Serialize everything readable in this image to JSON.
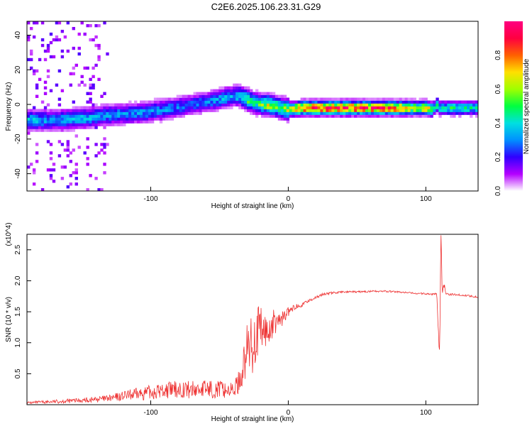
{
  "figure_title": "C2E6.2025.106.23.31.G29",
  "chart_data": [
    {
      "type": "heatmap",
      "title": "C2E6.2025.106.23.31.G29",
      "xlabel": "Height of straight line (km)",
      "ylabel": "Frequency (Hz)",
      "xlim": [
        -190,
        138
      ],
      "ylim": [
        -50,
        48
      ],
      "xticks": [
        -100,
        0,
        100
      ],
      "xtick_labels": [
        "-100",
        "0",
        "100"
      ],
      "yticks": [
        -40,
        -20,
        0,
        20,
        40
      ],
      "ytick_labels": [
        "-40",
        "-20",
        "0",
        "20",
        "40"
      ],
      "colorbar": {
        "label": "Normalized spectral amplitude",
        "range": [
          0,
          1
        ],
        "ticks": [
          0,
          0.2,
          0.4,
          0.6,
          0.8
        ],
        "tick_labels": [
          "0.0",
          "0.2",
          "0.4",
          "0.6",
          "0.8"
        ],
        "colormap": [
          "#ffffff",
          "#b400ff",
          "#3000ff",
          "#0090ff",
          "#00e0e0",
          "#00ff40",
          "#a0ff00",
          "#ffe000",
          "#ff6000",
          "#ff0040",
          "#ff0080"
        ]
      },
      "ridge": {
        "x": [
          -190,
          -170,
          -150,
          -130,
          -110,
          -90,
          -70,
          -55,
          -45,
          -40,
          -35,
          -30,
          -25,
          -20,
          -15,
          -10,
          -5,
          0,
          10,
          30,
          60,
          80,
          95,
          100,
          104,
          106,
          108,
          110,
          120,
          138
        ],
        "y": [
          -9,
          -9,
          -8,
          -6,
          -5,
          -3,
          0,
          2,
          4,
          5,
          5,
          3,
          1,
          0,
          0,
          -1,
          -2,
          -3,
          -2,
          -2,
          -2,
          -2,
          -2,
          -2,
          -3,
          -2,
          0,
          -2,
          -2,
          -2
        ],
        "amplitude": [
          0.35,
          0.3,
          0.35,
          0.3,
          0.3,
          0.3,
          0.25,
          0.3,
          0.35,
          0.3,
          0.4,
          0.5,
          0.45,
          0.5,
          0.6,
          0.55,
          0.5,
          0.6,
          0.85,
          0.9,
          0.85,
          0.8,
          0.6,
          0.7,
          0.6,
          0.4,
          0.5,
          0.4,
          0.45,
          0.4
        ]
      }
    },
    {
      "type": "line",
      "xlabel": "Height of straight line (km)",
      "ylabel": "SNR (10 * v/v)",
      "y_multiplier": "(x10^4)",
      "xlim": [
        -190,
        138
      ],
      "ylim": [
        0,
        2.75
      ],
      "xticks": [
        -100,
        0,
        100
      ],
      "xtick_labels": [
        "-100",
        "0",
        "100"
      ],
      "yticks": [
        0.5,
        1.0,
        1.5,
        2.0,
        2.5
      ],
      "ytick_labels": [
        "0.5",
        "1.0",
        "1.5",
        "2.0",
        "2.5"
      ],
      "line_color": "#ee3333",
      "series": [
        {
          "x": [
            -190,
            -170,
            -150,
            -130,
            -120,
            -110,
            -100,
            -90,
            -80,
            -70,
            -60,
            -50,
            -40,
            -35,
            -32,
            -30,
            -28,
            -26,
            -24,
            -22,
            -20,
            -18,
            -16,
            -14,
            -12,
            -10,
            -8,
            -6,
            -4,
            -2,
            0,
            2,
            5,
            8,
            10,
            12,
            15,
            20,
            25,
            30,
            40,
            50,
            60,
            70,
            80,
            90,
            100,
            105,
            108,
            109,
            110,
            111,
            112,
            113,
            115,
            120,
            125,
            130,
            138
          ],
          "y": [
            0.03,
            0.05,
            0.07,
            0.1,
            0.14,
            0.17,
            0.2,
            0.23,
            0.25,
            0.24,
            0.26,
            0.25,
            0.23,
            0.4,
            0.7,
            0.85,
            0.95,
            1.0,
            1.1,
            1.15,
            1.2,
            1.18,
            1.15,
            1.2,
            1.28,
            1.32,
            1.38,
            1.35,
            1.4,
            1.45,
            1.5,
            1.52,
            1.58,
            1.62,
            1.6,
            1.64,
            1.68,
            1.73,
            1.78,
            1.8,
            1.82,
            1.82,
            1.83,
            1.83,
            1.82,
            1.8,
            1.79,
            1.78,
            1.8,
            1.3,
            0.8,
            2.75,
            1.75,
            1.95,
            1.78,
            1.78,
            1.77,
            1.76,
            1.74
          ],
          "noise_envelope": [
            0.02,
            0.03,
            0.04,
            0.06,
            0.08,
            0.1,
            0.12,
            0.13,
            0.14,
            0.15,
            0.15,
            0.15,
            0.12,
            0.2,
            0.35,
            0.45,
            0.5,
            0.55,
            0.5,
            0.45,
            0.4,
            0.4,
            0.35,
            0.3,
            0.25,
            0.22,
            0.18,
            0.15,
            0.12,
            0.1,
            0.08,
            0.06,
            0.05,
            0.04,
            0.03,
            0.03,
            0.02,
            0.02,
            0.02,
            0.02,
            0.015,
            0.015,
            0.015,
            0.015,
            0.015,
            0.015,
            0.015,
            0.015,
            0.015,
            0.1,
            0.1,
            0.1,
            0.05,
            0.05,
            0.02,
            0.015,
            0.015,
            0.015,
            0.015
          ]
        }
      ]
    }
  ]
}
